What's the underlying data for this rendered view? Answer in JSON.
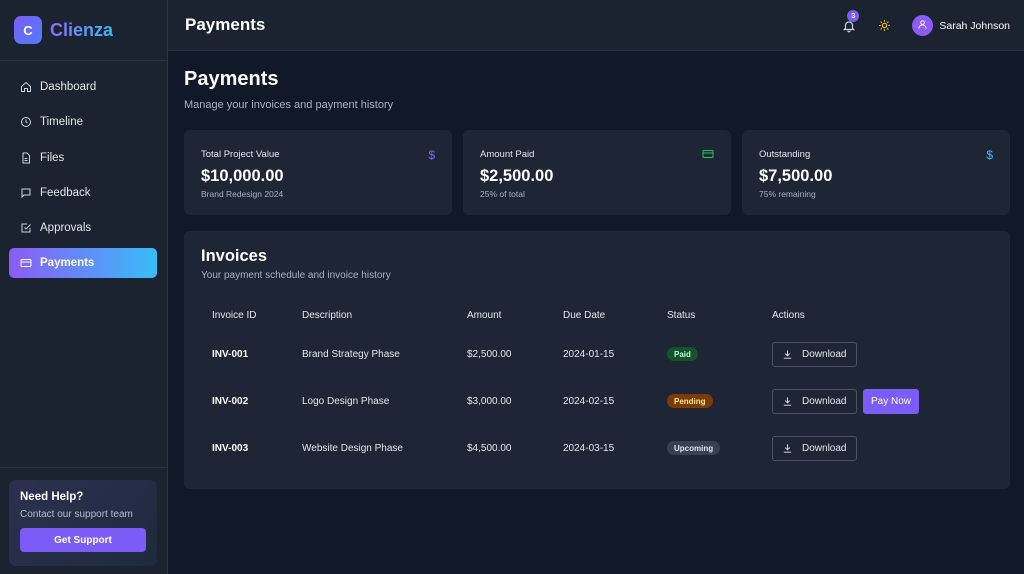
{
  "brand": {
    "logo_letter": "C",
    "name": "Clienza"
  },
  "sidebar": {
    "items": [
      {
        "label": "Dashboard",
        "icon": "home-icon",
        "active": false
      },
      {
        "label": "Timeline",
        "icon": "clock-icon",
        "active": false
      },
      {
        "label": "Files",
        "icon": "file-icon",
        "active": false
      },
      {
        "label": "Feedback",
        "icon": "message-icon",
        "active": false
      },
      {
        "label": "Approvals",
        "icon": "check-square-icon",
        "active": false
      },
      {
        "label": "Payments",
        "icon": "credit-card-icon",
        "active": true
      }
    ],
    "help": {
      "title": "Need Help?",
      "subtitle": "Contact our support team",
      "button": "Get Support"
    }
  },
  "header": {
    "title": "Payments",
    "notification_count": "3",
    "user_name": "Sarah Johnson"
  },
  "main": {
    "title": "Payments",
    "subtitle": "Manage your invoices and payment history",
    "stats": [
      {
        "label": "Total Project Value",
        "value": "$10,000.00",
        "note": "Brand Redesign 2024",
        "icon": "dollar-icon",
        "icon_color": "#8b5cf6"
      },
      {
        "label": "Amount Paid",
        "value": "$2,500.00",
        "note": "25% of total",
        "icon": "credit-card-icon",
        "icon_color": "#22c55e"
      },
      {
        "label": "Outstanding",
        "value": "$7,500.00",
        "note": "75% remaining",
        "icon": "dollar-icon",
        "icon_color": "#38bdf8"
      }
    ],
    "invoices": {
      "title": "Invoices",
      "subtitle": "Your payment schedule and invoice history",
      "columns": [
        "Invoice ID",
        "Description",
        "Amount",
        "Due Date",
        "Status",
        "Actions"
      ],
      "rows": [
        {
          "id": "INV-001",
          "description": "Brand Strategy Phase",
          "amount": "$2,500.00",
          "due": "2024-01-15",
          "status": "Paid",
          "download": "Download"
        },
        {
          "id": "INV-002",
          "description": "Logo Design Phase",
          "amount": "$3,000.00",
          "due": "2024-02-15",
          "status": "Pending",
          "download": "Download",
          "pay": "Pay Now"
        },
        {
          "id": "INV-003",
          "description": "Website Design Phase",
          "amount": "$4,500.00",
          "due": "2024-03-15",
          "status": "Upcoming",
          "download": "Download"
        }
      ]
    }
  },
  "colors": {
    "accent": "#7c5cf6",
    "background": "#111827",
    "card": "#1e2636"
  }
}
